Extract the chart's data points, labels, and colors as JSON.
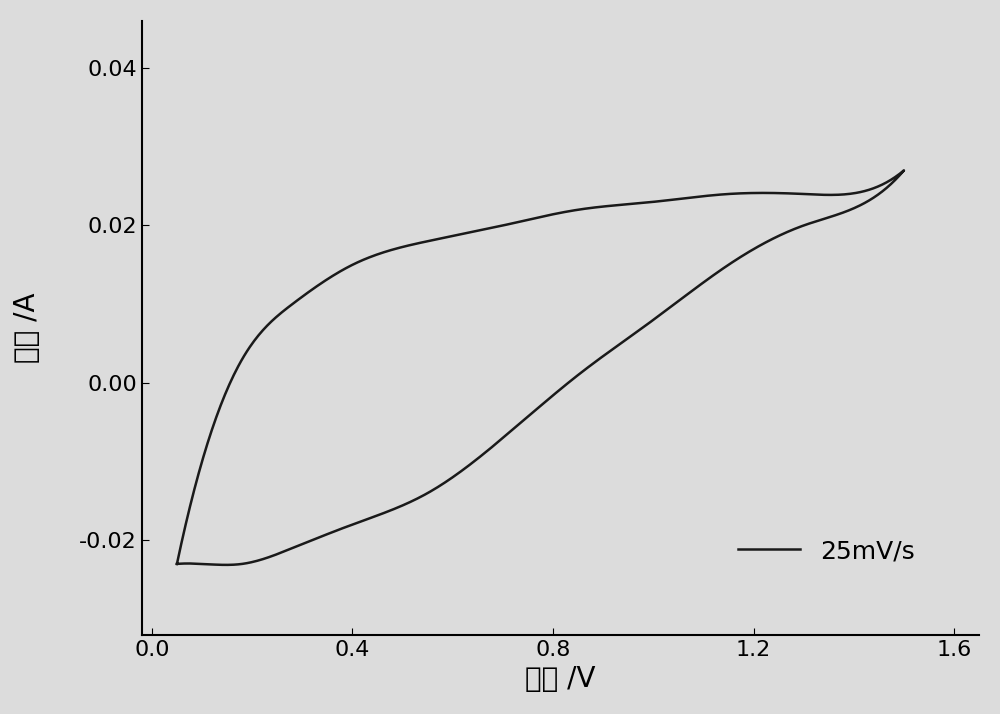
{
  "title": "",
  "xlabel": "电压 /V",
  "ylabel": "电流 /A",
  "xlim": [
    -0.02,
    1.65
  ],
  "ylim": [
    -0.032,
    0.046
  ],
  "xticks": [
    0.0,
    0.4,
    0.8,
    1.2,
    1.6
  ],
  "yticks": [
    -0.02,
    0.0,
    0.02,
    0.04
  ],
  "legend_label": "25mV/s",
  "line_color": "#1a1a1a",
  "line_width": 1.8,
  "background_color": "#e8e8e8",
  "xlabel_fontsize": 20,
  "ylabel_fontsize": 20,
  "tick_fontsize": 16,
  "legend_fontsize": 18,
  "upper_x": [
    0.05,
    0.1,
    0.18,
    0.28,
    0.4,
    0.55,
    0.7,
    0.85,
    1.0,
    1.15,
    1.3,
    1.45,
    1.5
  ],
  "upper_y": [
    -0.023,
    -0.01,
    0.003,
    0.01,
    0.015,
    0.018,
    0.02,
    0.022,
    0.023,
    0.024,
    0.024,
    0.025,
    0.027
  ],
  "lower_x": [
    1.5,
    1.45,
    1.3,
    1.15,
    1.0,
    0.85,
    0.7,
    0.55,
    0.4,
    0.28,
    0.18,
    0.1,
    0.05
  ],
  "lower_y": [
    0.027,
    0.024,
    0.02,
    0.015,
    0.008,
    0.001,
    -0.007,
    -0.014,
    -0.018,
    -0.021,
    -0.023,
    -0.023,
    -0.023
  ]
}
